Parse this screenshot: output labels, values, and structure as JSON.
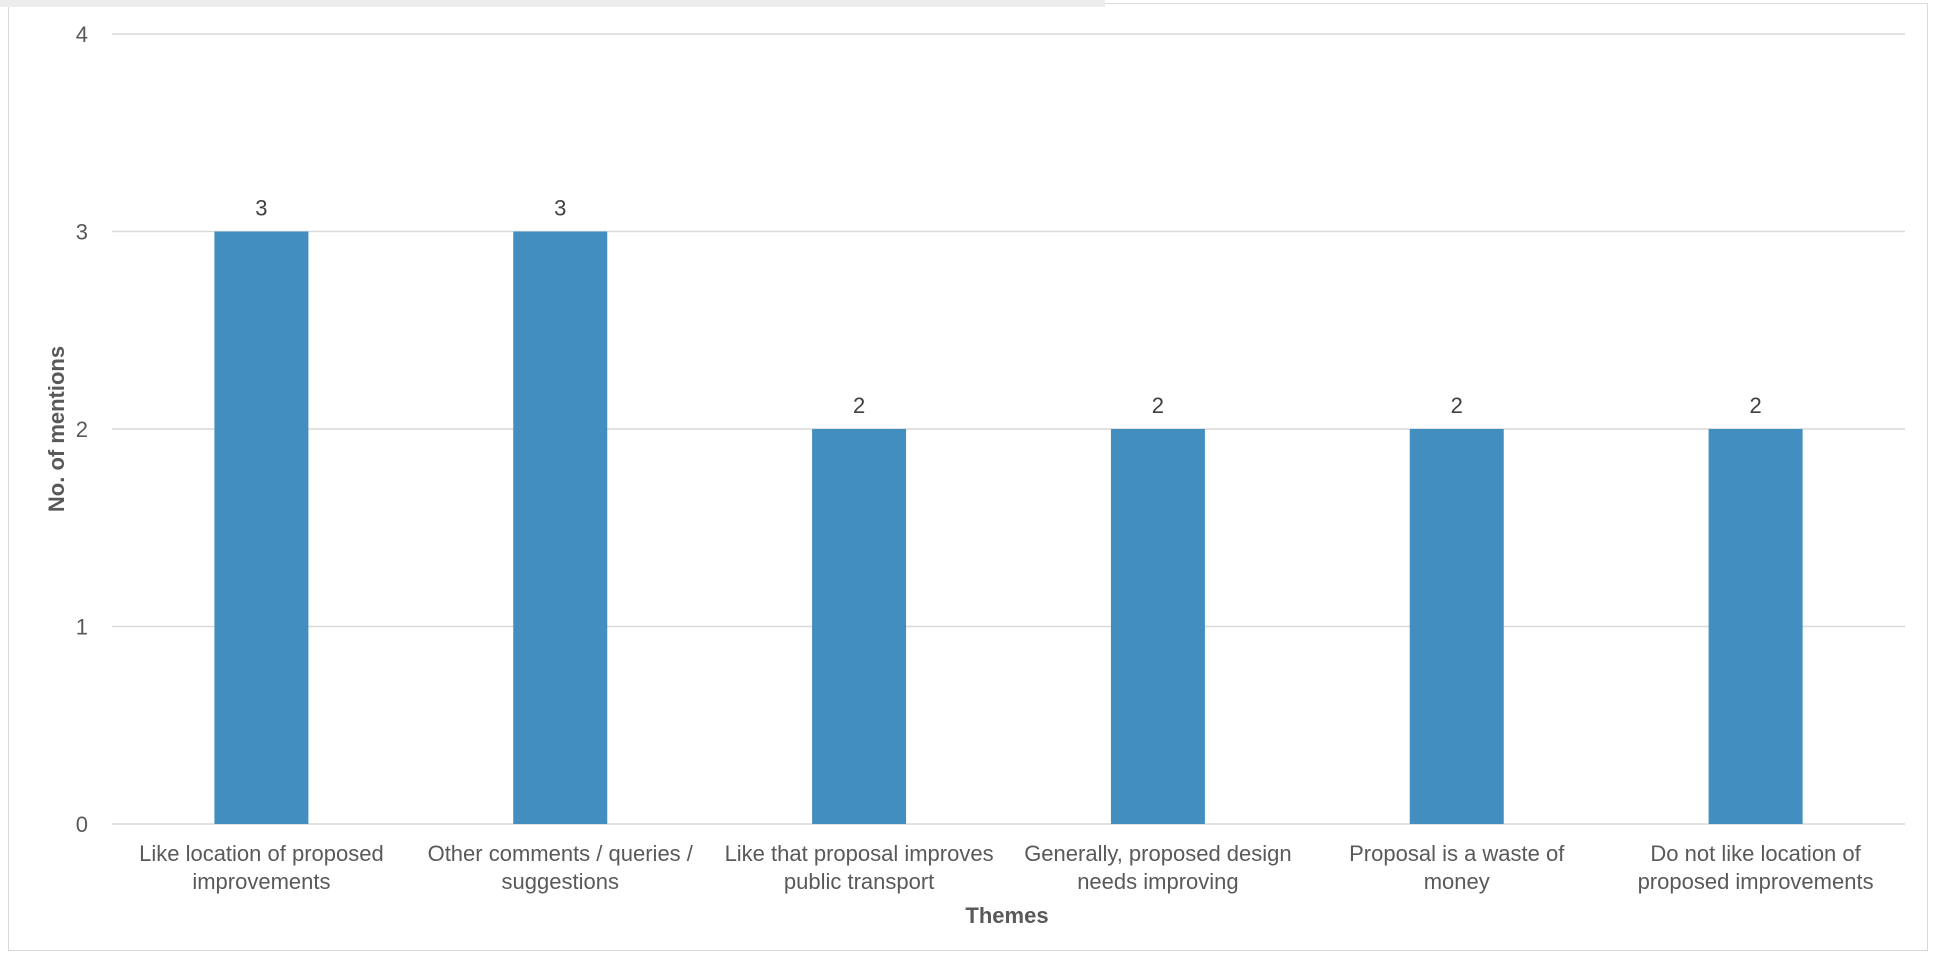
{
  "chart_data": {
    "type": "bar",
    "categories": [
      [
        "Like location of proposed",
        "improvements"
      ],
      [
        "Other comments / queries /",
        "suggestions"
      ],
      [
        "Like that proposal improves",
        "public transport"
      ],
      [
        "Generally, proposed design",
        "needs improving"
      ],
      [
        "Proposal is a waste of",
        "money"
      ],
      [
        "Do not like location of",
        "proposed improvements"
      ]
    ],
    "values": [
      3,
      3,
      2,
      2,
      2,
      2
    ],
    "data_labels": [
      "3",
      "3",
      "2",
      "2",
      "2",
      "2"
    ],
    "title": "",
    "xlabel": "Themes",
    "ylabel": "No. of mentions",
    "ylim": [
      0,
      4
    ],
    "yticks": [
      "0",
      "1",
      "2",
      "3",
      "4"
    ],
    "grid": true,
    "legend": "none",
    "bar_color": "#428ebf",
    "grid_color": "#d9d9d9"
  }
}
